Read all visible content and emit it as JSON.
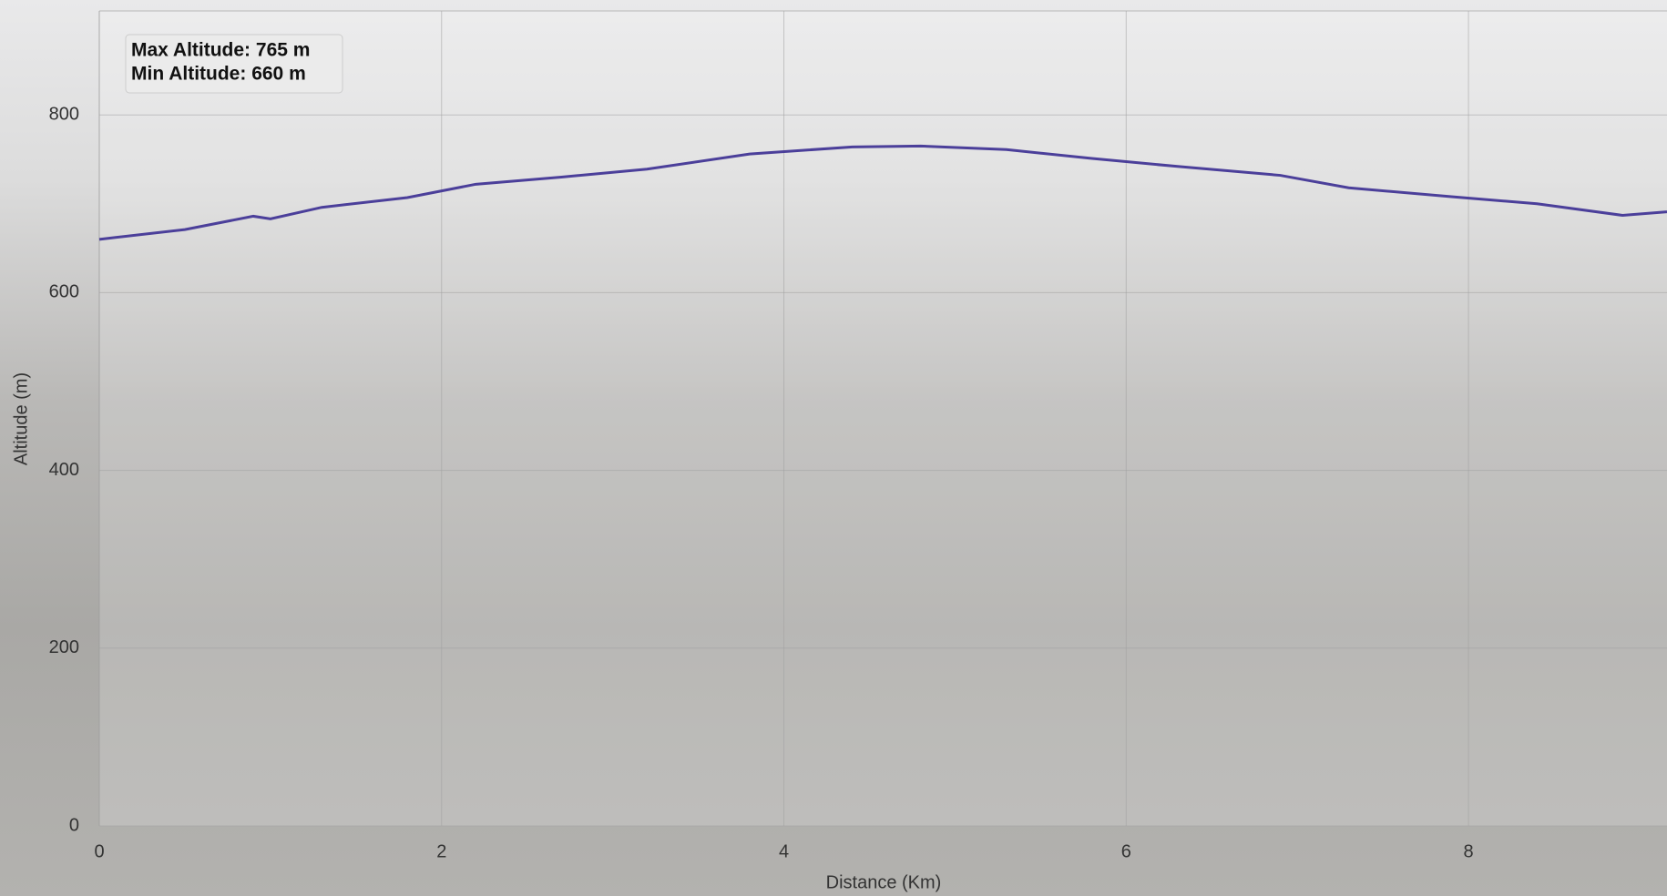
{
  "chart_data": {
    "type": "line",
    "x_label": "Distance (Km)",
    "y_label": "Altitude (m)",
    "annotations": [
      "Max Altitude: 765 m",
      "Min Altitude: 660 m"
    ],
    "x": [
      0,
      0.5,
      0.9,
      1.0,
      1.3,
      1.8,
      2.2,
      2.7,
      3.2,
      3.8,
      4.4,
      4.8,
      5.3,
      5.8,
      6.3,
      6.9,
      7.3,
      7.9,
      8.4,
      8.9,
      9.16
    ],
    "series": [
      {
        "name": "Altitude",
        "color": "#4b3f9a",
        "values": [
          660,
          671,
          686,
          683,
          696,
          707,
          722,
          730,
          739,
          756,
          764,
          765,
          761,
          751,
          742,
          732,
          718,
          708,
          700,
          687,
          691
        ]
      }
    ],
    "xlim": [
      0,
      9.16
    ],
    "ylim": [
      0,
      917
    ],
    "xticks": [
      0,
      2,
      4,
      6,
      8
    ],
    "yticks": [
      0,
      200,
      400,
      600,
      800
    ],
    "grid": true
  }
}
